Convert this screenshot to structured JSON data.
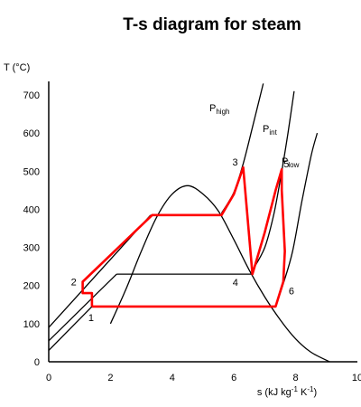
{
  "chart_data": {
    "type": "line",
    "title": "T-s diagram for steam",
    "xlabel": {
      "main": "s (kJ kg",
      "sup1": "-1",
      "mid": " K",
      "sup2": "-1",
      "end": ")"
    },
    "ylabel": "T (°C)",
    "xlim": [
      0,
      10
    ],
    "ylim": [
      0,
      700
    ],
    "xticks": [
      "0",
      "2",
      "4",
      "6",
      "8",
      "10"
    ],
    "yticks": [
      "0",
      "100",
      "200",
      "300",
      "400",
      "500",
      "600",
      "700"
    ],
    "grid": false,
    "colors": {
      "cycle": "#ff0000",
      "curves": "#000000"
    },
    "saturation_dome": [
      [
        2.0,
        100
      ],
      [
        2.5,
        190
      ],
      [
        3.0,
        290
      ],
      [
        3.5,
        380
      ],
      [
        4.0,
        440
      ],
      [
        4.5,
        462
      ],
      [
        5.0,
        440
      ],
      [
        5.5,
        395
      ],
      [
        6.0,
        320
      ],
      [
        6.5,
        240
      ],
      [
        7.0,
        170
      ],
      [
        7.5,
        110
      ],
      [
        8.0,
        60
      ],
      [
        8.5,
        25
      ],
      [
        9.1,
        0
      ]
    ],
    "liquid_lines": [
      [
        [
          0,
          90
        ],
        [
          3.3,
          385
        ]
      ],
      [
        [
          0,
          55
        ],
        [
          2.2,
          230
        ]
      ],
      [
        [
          0,
          30
        ],
        [
          1.4,
          145
        ]
      ]
    ],
    "isobars": [
      {
        "name": "P",
        "sub": "high",
        "points": [
          [
            5.6,
            390
          ],
          [
            6.0,
            445
          ],
          [
            6.3,
            520
          ],
          [
            6.6,
            615
          ],
          [
            6.95,
            730
          ]
        ]
      },
      {
        "name": "P",
        "sub": "int",
        "points": [
          [
            6.6,
            240
          ],
          [
            7.0,
            300
          ],
          [
            7.3,
            390
          ],
          [
            7.55,
            500
          ],
          [
            7.75,
            600
          ],
          [
            7.95,
            710
          ]
        ]
      },
      {
        "name": "P",
        "sub": "low",
        "points": [
          [
            7.35,
            145
          ],
          [
            7.6,
            205
          ],
          [
            7.9,
            290
          ],
          [
            8.2,
            420
          ],
          [
            8.5,
            540
          ],
          [
            8.7,
            600
          ]
        ]
      }
    ],
    "mid_isobar_line": [
      [
        2.2,
        230
      ],
      [
        6.6,
        230
      ]
    ],
    "cycle": [
      [
        1.4,
        145
      ],
      [
        1.4,
        180
      ],
      [
        1.1,
        180
      ],
      [
        1.1,
        210
      ],
      [
        3.35,
        385
      ],
      [
        5.6,
        385
      ],
      [
        6.0,
        440
      ],
      [
        6.3,
        510
      ],
      [
        6.6,
        230
      ],
      [
        7.0,
        340
      ],
      [
        7.35,
        450
      ],
      [
        7.55,
        505
      ],
      [
        7.55,
        450
      ],
      [
        7.65,
        290
      ],
      [
        7.6,
        210
      ],
      [
        7.35,
        145
      ],
      [
        1.4,
        145
      ]
    ],
    "state_points": [
      {
        "label": "1",
        "x": 1.4,
        "y": 145
      },
      {
        "label": "2",
        "x": 1.1,
        "y": 210
      },
      {
        "label": "3",
        "x": 6.3,
        "y": 510
      },
      {
        "label": "4",
        "x": 6.6,
        "y": 230
      },
      {
        "label": "5",
        "x": 7.55,
        "y": 505
      },
      {
        "label": "6",
        "x": 7.6,
        "y": 210
      }
    ]
  }
}
